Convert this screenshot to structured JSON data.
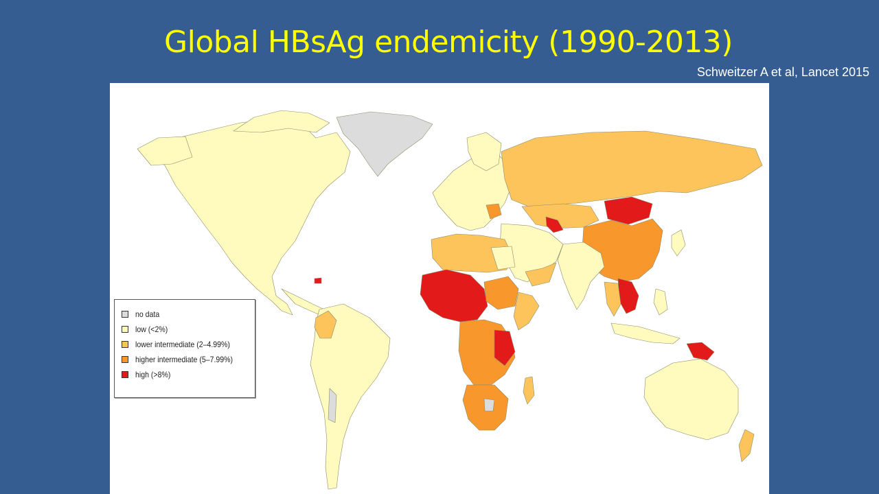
{
  "title": "Global HBsAg endemicity (1990-2013)",
  "citation": "Schweitzer A et al, Lancet 2015",
  "colors": {
    "background": "#355d91",
    "title": "#ffff00",
    "no_data": "#dcdcdc",
    "low": "#fffbbf",
    "lower_intermediate": "#fcc45b",
    "higher_intermediate": "#f8982c",
    "high": "#e21a1a"
  },
  "legend": {
    "items": [
      {
        "label": "no data",
        "color": "#dcdcdc"
      },
      {
        "label": "low (<2%)",
        "color": "#fffbbf"
      },
      {
        "label": "lower intermediate (2–4.99%)",
        "color": "#fcc45b"
      },
      {
        "label": "higher intermediate (5–7.99%)",
        "color": "#f8982c"
      },
      {
        "label": "high (>8%)",
        "color": "#e21a1a"
      }
    ]
  }
}
